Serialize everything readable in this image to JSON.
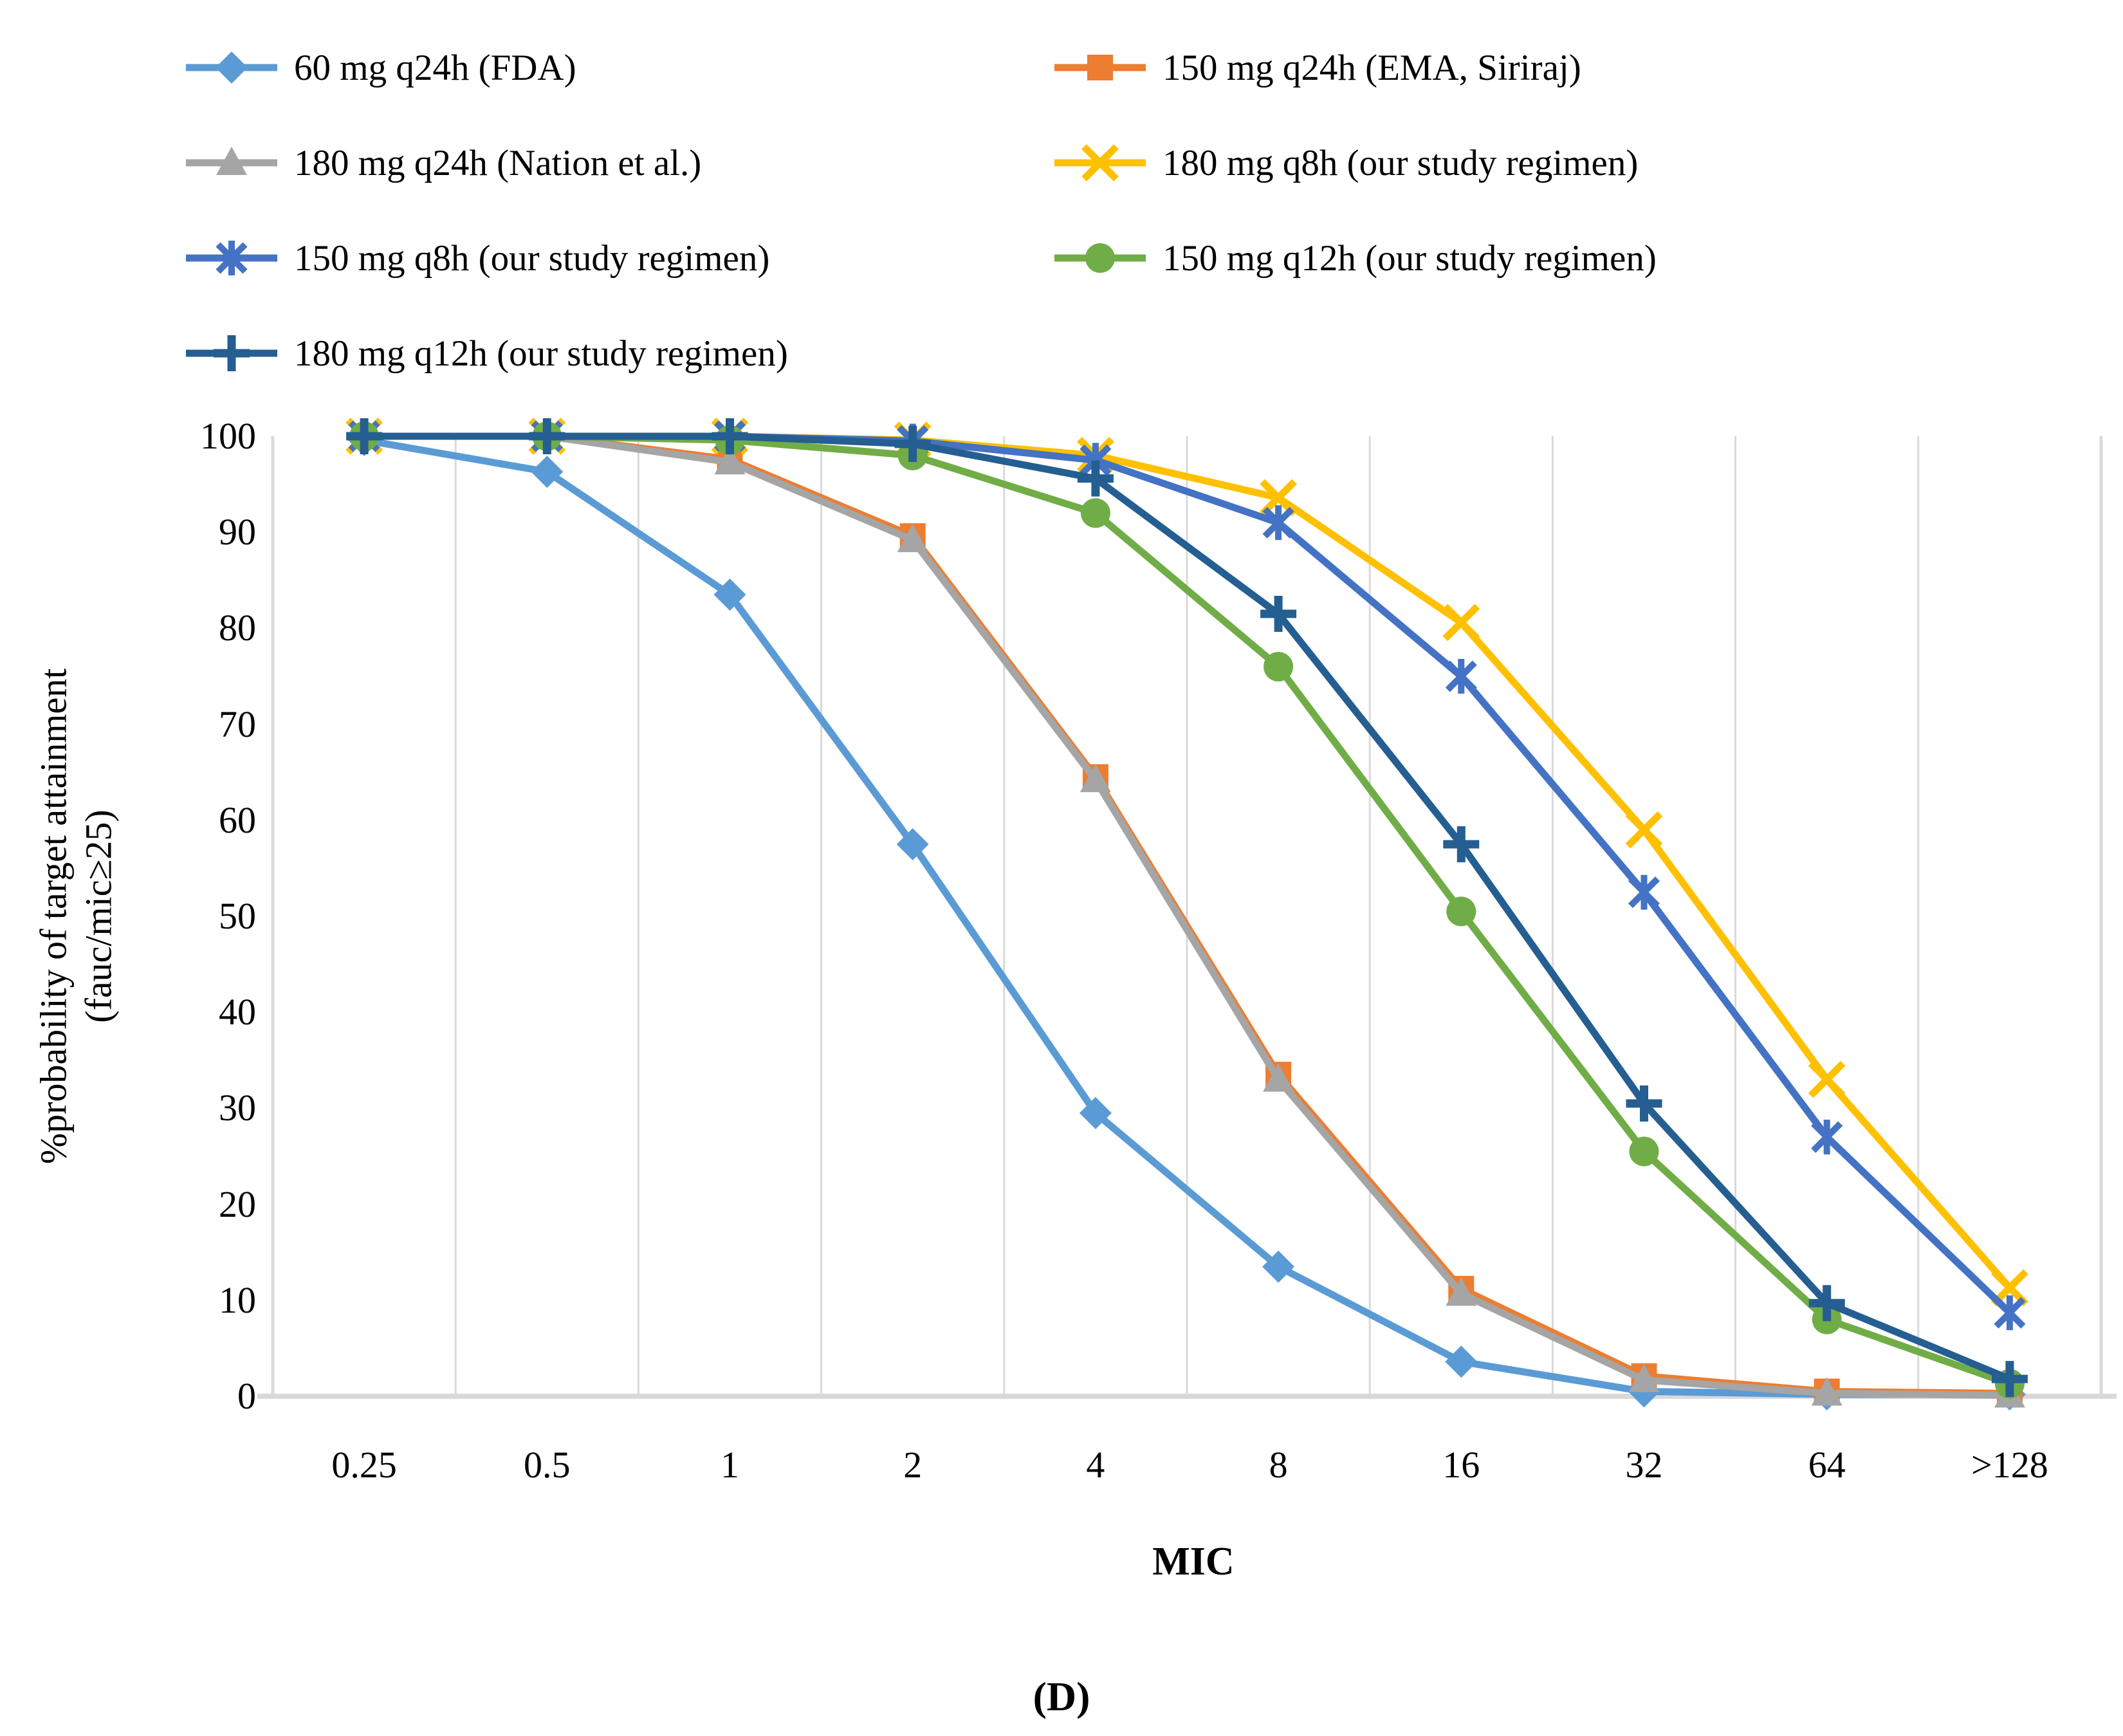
{
  "figure": {
    "caption": "(D)"
  },
  "chart_data": {
    "type": "line",
    "title": "",
    "xlabel": "MIC",
    "ylabel": "%probability of target attainment (fauc/mic≥25)",
    "ylabel_line1": "%probability of target attainment",
    "ylabel_line2": "(fauc/mic≥25)",
    "categories": [
      "0.25",
      "0.5",
      "1",
      "2",
      "4",
      "8",
      "16",
      "32",
      "64",
      ">128"
    ],
    "ylim": [
      0,
      100
    ],
    "ytick_step": 10,
    "ytick_labels": [
      "100",
      "90",
      "80",
      "70",
      "60",
      "50",
      "40",
      "30",
      "20",
      "10",
      "0"
    ],
    "grid": "vertical-only",
    "legend_position": "top",
    "axis_color": "#D9D9D9",
    "series": [
      {
        "name": "60 mg q24h (FDA)",
        "marker": "diamond",
        "color": "#5B9BD5",
        "values": [
          99.6,
          96.3,
          83.5,
          57.5,
          29.5,
          13.5,
          3.6,
          0.5,
          0.2,
          0.2
        ]
      },
      {
        "name": "150 mg q24h (EMA, Siriraj)",
        "marker": "square",
        "color": "#ED7D31",
        "values": [
          100,
          100,
          97.6,
          89.6,
          64.5,
          33.5,
          11.2,
          2.1,
          0.5,
          0.3
        ]
      },
      {
        "name": "180 mg q24h (Nation et al.)",
        "marker": "triangle",
        "color": "#A5A5A5",
        "values": [
          100,
          100,
          97.3,
          89.2,
          64.2,
          33.0,
          10.7,
          1.7,
          0.3,
          0.1
        ]
      },
      {
        "name": "180 mg q8h (our study regimen)",
        "marker": "x",
        "color": "#FFC000",
        "values": [
          100,
          100,
          100,
          99.6,
          98.0,
          93.6,
          80.6,
          59.0,
          33.0,
          11.3
        ]
      },
      {
        "name": "150 mg q8h (our study regimen)",
        "marker": "asterisk",
        "color": "#4472C4",
        "values": [
          100,
          100,
          100,
          99.5,
          97.5,
          91.0,
          75.0,
          52.5,
          27.0,
          8.7
        ]
      },
      {
        "name": "150 mg q12h (our study regimen)",
        "marker": "circle",
        "color": "#70AD47",
        "values": [
          100,
          100,
          99.6,
          98.0,
          92.0,
          76.0,
          50.5,
          25.5,
          8.0,
          1.3
        ]
      },
      {
        "name": "180 mg q12h (our study regimen)",
        "marker": "plus",
        "color": "#255E91",
        "values": [
          100,
          100,
          100,
          99.2,
          95.6,
          81.5,
          57.5,
          30.5,
          9.7,
          1.8
        ]
      }
    ]
  }
}
